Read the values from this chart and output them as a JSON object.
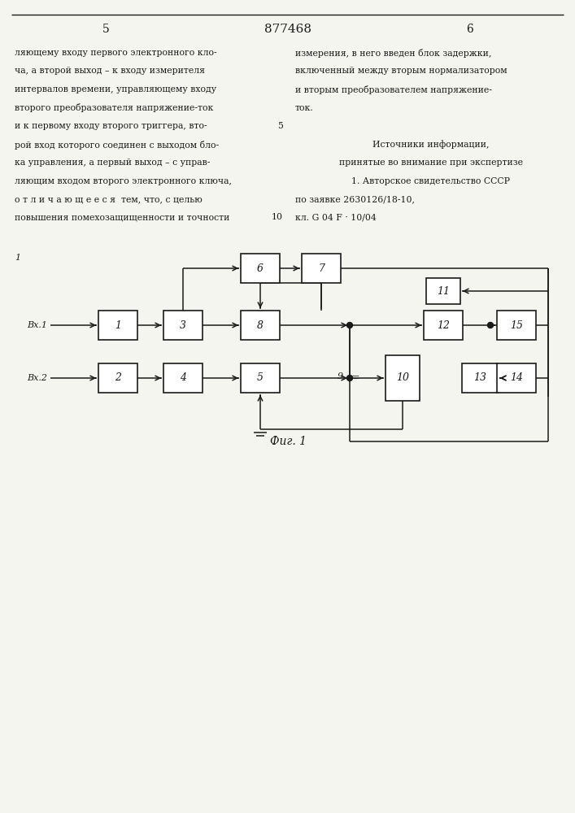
{
  "page_num_left": "5",
  "page_num_center": "877468",
  "page_num_right": "6",
  "text_left": [
    "ляющему входу первого электронного кло-",
    "ча, а второй выход – к входу измерителя",
    "интервалов времени, управляющему входу",
    "второго преобразователя напряжение-ток",
    "и к первому входу второго триггера, вто-",
    "рой вход которого соединен с выходом бло-",
    "ка управления, а первый выход – с управ-",
    "ляющим входом второго электронного ключа,",
    "о т л и ч а ю щ е е с я  тем, что, с целью",
    "повышения помехозащищенности и точности"
  ],
  "text_right_para1": [
    "измерения, в него введен блок задержки,",
    "включенный между вторым нормализатором",
    "и вторым преобразователем напряжение-",
    "ток."
  ],
  "text_right_para2": [
    "Источники информации,",
    "принятые во внимание при экспертизе",
    "1. Авторское свидетельство СССР",
    "по заявке 2630126/18-10,",
    "кл. G 04 F · 10/04"
  ],
  "line5_marker": "5",
  "line10_marker": "10",
  "fig_caption": "Фиг. 1",
  "footnote_marker": "1",
  "bg_color": "#f5f5f0",
  "line_color": "#1a1a1a",
  "text_color": "#1a1a1a"
}
